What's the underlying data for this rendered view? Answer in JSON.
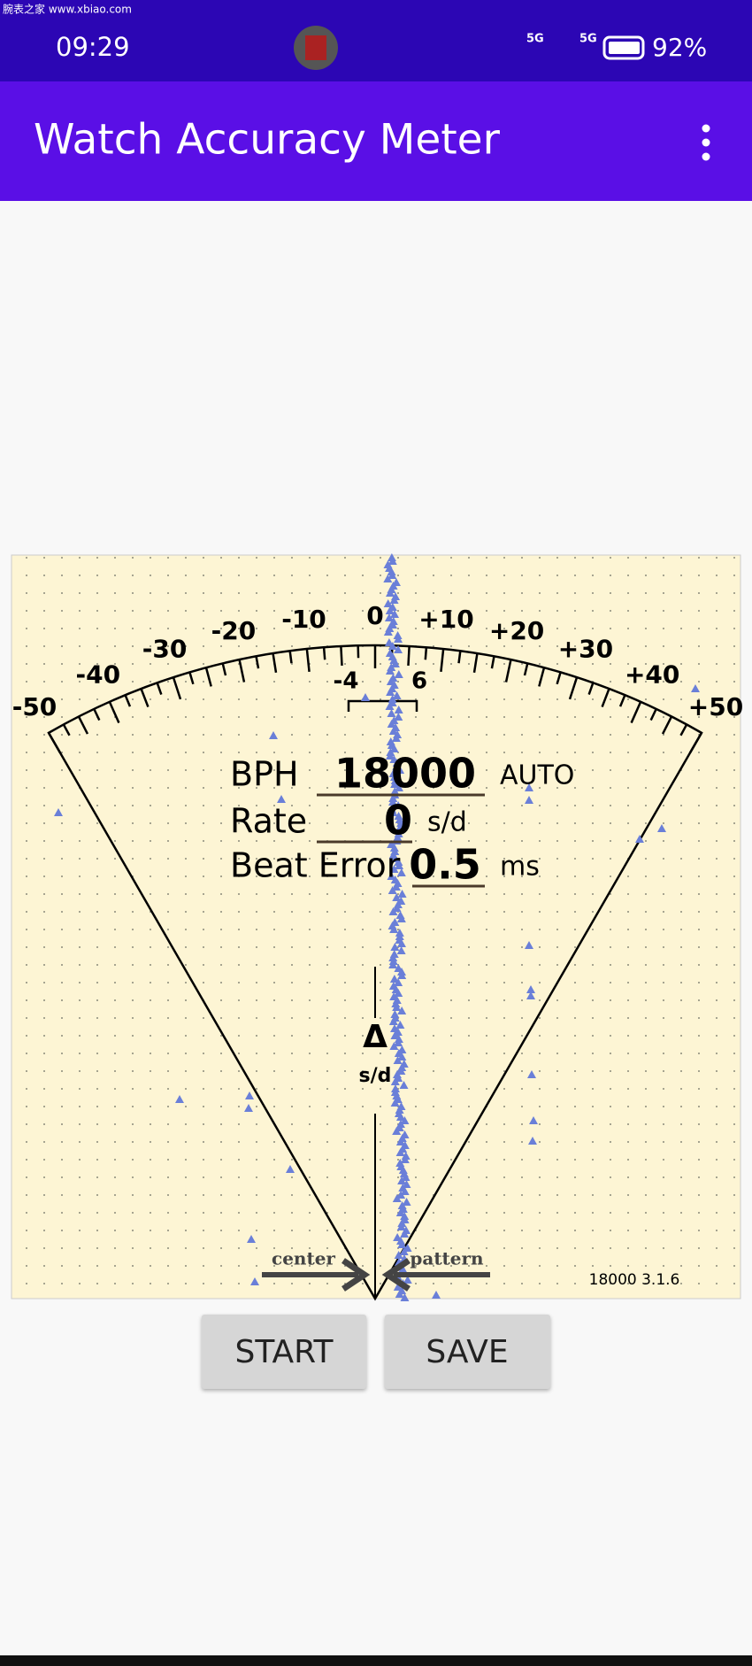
{
  "status_bar": {
    "time": "09:29",
    "network_1": "5G",
    "network_2": "5G",
    "battery": "92%"
  },
  "watermark": "腕表之家 www.xbiao.com",
  "app_bar": {
    "title": "Watch Accuracy Meter"
  },
  "meter": {
    "scale_labels": [
      "-50",
      "-40",
      "-30",
      "-20",
      "-10",
      "0",
      "+10",
      "+20",
      "+30",
      "+40",
      "+50"
    ],
    "inner_labels": [
      "-4",
      "6"
    ],
    "readings": [
      {
        "label": "BPH",
        "value": "18000",
        "unit": "AUTO"
      },
      {
        "label": "Rate",
        "value": "0",
        "unit": "s/d"
      },
      {
        "label": "Beat Error",
        "value": "0.5",
        "unit": "ms"
      }
    ],
    "delta_symbol": "Δ",
    "delta_unit": "s/d",
    "center_label": "center",
    "pattern_label": "pattern",
    "version": "18000 3.1.6"
  },
  "buttons": [
    "START",
    "SAVE"
  ]
}
